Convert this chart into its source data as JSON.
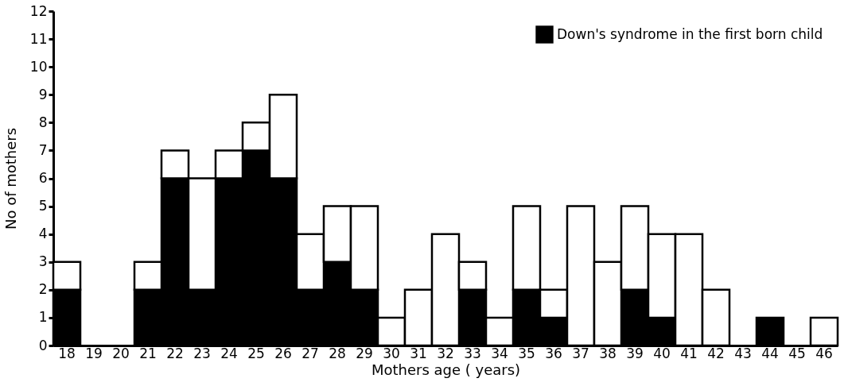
{
  "chart_data": {
    "type": "bar",
    "stacked": true,
    "xlabel": "Mothers age ( years)",
    "ylabel": "No of mothers",
    "categories": [
      "18",
      "19",
      "20",
      "21",
      "22",
      "23",
      "24",
      "25",
      "26",
      "27",
      "28",
      "29",
      "30",
      "31",
      "32",
      "33",
      "34",
      "35",
      "36",
      "37",
      "38",
      "39",
      "40",
      "41",
      "42",
      "43",
      "44",
      "45",
      "46"
    ],
    "series": [
      {
        "name": "Down's syndrome in the first born child",
        "color": "#000000",
        "values": [
          2,
          0,
          0,
          2,
          6,
          2,
          6,
          7,
          6,
          2,
          3,
          2,
          0,
          0,
          0,
          2,
          0,
          2,
          1,
          0,
          0,
          2,
          1,
          0,
          0,
          0,
          1,
          0,
          0
        ]
      },
      {
        "color": "#ffffff",
        "values": [
          1,
          0,
          0,
          1,
          1,
          4,
          1,
          1,
          3,
          2,
          2,
          3,
          1,
          2,
          4,
          1,
          1,
          3,
          1,
          5,
          3,
          3,
          3,
          4,
          2,
          0,
          0,
          0,
          1
        ]
      }
    ],
    "ylim": [
      0,
      12
    ],
    "yticks": [
      0,
      1,
      2,
      3,
      4,
      5,
      6,
      7,
      8,
      9,
      10,
      11,
      12
    ],
    "grid": false,
    "legend": "top right"
  }
}
